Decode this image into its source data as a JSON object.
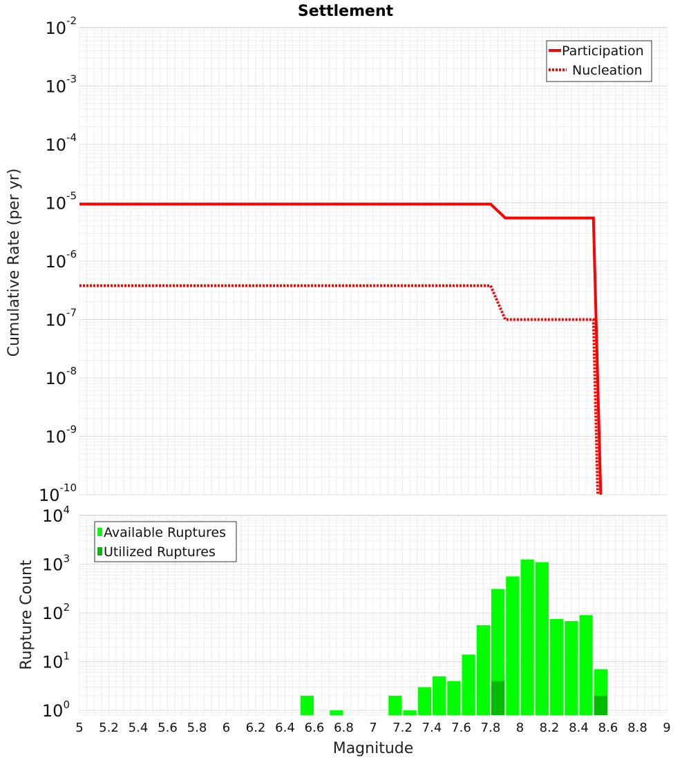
{
  "chart_data": [
    {
      "type": "line",
      "title": "Settlement",
      "xlabel": "",
      "ylabel": "Cumulative Rate (per yr)",
      "xlim": [
        5,
        9
      ],
      "ylim": [
        1e-10,
        0.01
      ],
      "yscale": "log",
      "y_tick_exponents": [
        "-2",
        "-3",
        "-4",
        "-5",
        "-6",
        "-7",
        "-8",
        "-9",
        "-10"
      ],
      "y_tick_base": "10",
      "legend_position": "top-right",
      "series": [
        {
          "name": "Participation",
          "color": "#ff0000",
          "style": "solid",
          "x": [
            5.0,
            7.8,
            7.9,
            8.5,
            8.55
          ],
          "y": [
            9.5e-06,
            9.5e-06,
            5.5e-06,
            5.5e-06,
            1e-10
          ]
        },
        {
          "name": "Nucleation",
          "color": "#ff0000",
          "style": "dotted",
          "x": [
            5.0,
            7.8,
            7.9,
            8.5,
            8.53
          ],
          "y": [
            3.8e-07,
            3.8e-07,
            1e-07,
            1e-07,
            1e-10
          ]
        }
      ]
    },
    {
      "type": "bar",
      "title": "",
      "xlabel": "Magnitude",
      "ylabel": "Rupture Count",
      "xlim": [
        5,
        9
      ],
      "ylim": [
        0.8,
        10000
      ],
      "yscale": "log",
      "y_tick_exponents": [
        "4",
        "3",
        "2",
        "1",
        "0"
      ],
      "y_tick_base": "10",
      "legend_position": "top-left",
      "x_ticks": [
        "5",
        "5.2",
        "5.4",
        "5.6",
        "5.8",
        "6",
        "6.2",
        "6.4",
        "6.6",
        "6.8",
        "7",
        "7.2",
        "7.4",
        "7.6",
        "7.8",
        "8",
        "8.2",
        "8.4",
        "8.6",
        "8.8",
        "9"
      ],
      "bin_width": 0.1,
      "series": [
        {
          "name": "Available Ruptures",
          "color": "#00ff00",
          "x": [
            6.55,
            6.75,
            7.15,
            7.25,
            7.35,
            7.45,
            7.55,
            7.65,
            7.75,
            7.85,
            7.95,
            8.05,
            8.15,
            8.25,
            8.35,
            8.45,
            8.55
          ],
          "values": [
            2,
            1,
            2,
            1,
            3,
            5,
            4,
            14,
            56,
            310,
            560,
            1250,
            1100,
            75,
            68,
            90,
            7
          ]
        },
        {
          "name": "Utilized Ruptures",
          "color": "#00bb00",
          "x": [
            7.85,
            8.55
          ],
          "values": [
            4,
            2
          ]
        }
      ]
    }
  ]
}
